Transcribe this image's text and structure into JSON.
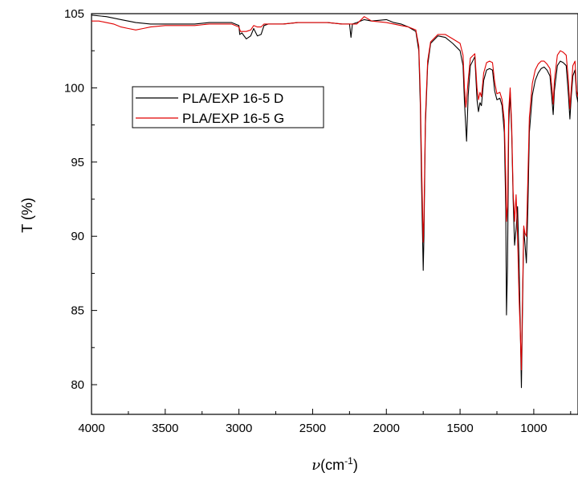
{
  "chart_data": {
    "type": "line",
    "title": "",
    "xlabel": {
      "symbol": "ν",
      "text": "(cm",
      "sup": "-1",
      "close": ")"
    },
    "ylabel": "T (%)",
    "xlim": [
      4000,
      700
    ],
    "ylim": [
      78,
      105
    ],
    "x_reversed": true,
    "x_ticks": [
      4000,
      3500,
      3000,
      2500,
      2000,
      1500,
      1000
    ],
    "y_ticks": [
      80,
      85,
      90,
      95,
      100,
      105
    ],
    "grid": false,
    "legend": {
      "position": "upper-left",
      "entries": [
        "PLA/EXP 16-5 D",
        "PLA/EXP 16-5 G"
      ]
    },
    "colors": {
      "PLA/EXP 16-5 D": "#000000",
      "PLA/EXP 16-5 G": "#e00000"
    },
    "series": [
      {
        "name": "PLA/EXP 16-5 D",
        "color": "#000000",
        "points": [
          [
            4000,
            104.9
          ],
          [
            3900,
            104.8
          ],
          [
            3800,
            104.6
          ],
          [
            3700,
            104.4
          ],
          [
            3600,
            104.3
          ],
          [
            3500,
            104.3
          ],
          [
            3400,
            104.3
          ],
          [
            3300,
            104.3
          ],
          [
            3200,
            104.4
          ],
          [
            3100,
            104.4
          ],
          [
            3050,
            104.4
          ],
          [
            3000,
            104.2
          ],
          [
            2995,
            103.6
          ],
          [
            2980,
            103.7
          ],
          [
            2950,
            103.3
          ],
          [
            2920,
            103.5
          ],
          [
            2900,
            104.0
          ],
          [
            2875,
            103.5
          ],
          [
            2850,
            103.6
          ],
          [
            2830,
            104.2
          ],
          [
            2800,
            104.3
          ],
          [
            2700,
            104.3
          ],
          [
            2600,
            104.4
          ],
          [
            2500,
            104.4
          ],
          [
            2400,
            104.4
          ],
          [
            2300,
            104.3
          ],
          [
            2250,
            104.3
          ],
          [
            2240,
            103.4
          ],
          [
            2230,
            104.3
          ],
          [
            2200,
            104.4
          ],
          [
            2150,
            104.6
          ],
          [
            2100,
            104.5
          ],
          [
            2000,
            104.6
          ],
          [
            1950,
            104.4
          ],
          [
            1900,
            104.3
          ],
          [
            1850,
            104.1
          ],
          [
            1800,
            103.8
          ],
          [
            1780,
            102.5
          ],
          [
            1770,
            99.0
          ],
          [
            1760,
            93.0
          ],
          [
            1750,
            87.7
          ],
          [
            1745,
            90.0
          ],
          [
            1735,
            97.5
          ],
          [
            1720,
            101.5
          ],
          [
            1700,
            103.0
          ],
          [
            1650,
            103.5
          ],
          [
            1600,
            103.4
          ],
          [
            1550,
            103.0
          ],
          [
            1500,
            102.5
          ],
          [
            1480,
            101.5
          ],
          [
            1470,
            99.0
          ],
          [
            1456,
            96.4
          ],
          [
            1445,
            99.5
          ],
          [
            1430,
            101.5
          ],
          [
            1400,
            102.1
          ],
          [
            1385,
            99.2
          ],
          [
            1375,
            98.4
          ],
          [
            1365,
            99.0
          ],
          [
            1355,
            98.8
          ],
          [
            1340,
            100.5
          ],
          [
            1320,
            101.2
          ],
          [
            1300,
            101.3
          ],
          [
            1280,
            101.2
          ],
          [
            1265,
            99.8
          ],
          [
            1250,
            99.2
          ],
          [
            1230,
            99.3
          ],
          [
            1215,
            98.8
          ],
          [
            1200,
            97.0
          ],
          [
            1190,
            92.0
          ],
          [
            1185,
            84.7
          ],
          [
            1178,
            88.0
          ],
          [
            1170,
            97.5
          ],
          [
            1160,
            99.7
          ],
          [
            1150,
            97.0
          ],
          [
            1140,
            92.5
          ],
          [
            1130,
            89.4
          ],
          [
            1120,
            90.5
          ],
          [
            1110,
            92.0
          ],
          [
            1100,
            88.5
          ],
          [
            1090,
            83.0
          ],
          [
            1084,
            79.8
          ],
          [
            1078,
            84.0
          ],
          [
            1068,
            90.5
          ],
          [
            1060,
            89.5
          ],
          [
            1050,
            88.2
          ],
          [
            1040,
            92.0
          ],
          [
            1030,
            97.0
          ],
          [
            1010,
            99.5
          ],
          [
            990,
            100.5
          ],
          [
            970,
            101.0
          ],
          [
            950,
            101.3
          ],
          [
            930,
            101.4
          ],
          [
            910,
            101.2
          ],
          [
            890,
            100.8
          ],
          [
            875,
            99.0
          ],
          [
            868,
            98.2
          ],
          [
            860,
            99.8
          ],
          [
            840,
            101.5
          ],
          [
            820,
            101.8
          ],
          [
            800,
            101.7
          ],
          [
            780,
            101.5
          ],
          [
            765,
            99.5
          ],
          [
            755,
            97.9
          ],
          [
            745,
            99.5
          ],
          [
            735,
            100.8
          ],
          [
            720,
            101.2
          ],
          [
            710,
            99.5
          ],
          [
            700,
            99.0
          ]
        ]
      },
      {
        "name": "PLA/EXP 16-5 G",
        "color": "#e00000",
        "points": [
          [
            4000,
            104.5
          ],
          [
            3950,
            104.5
          ],
          [
            3900,
            104.4
          ],
          [
            3850,
            104.3
          ],
          [
            3800,
            104.1
          ],
          [
            3750,
            104.0
          ],
          [
            3700,
            103.9
          ],
          [
            3650,
            104.0
          ],
          [
            3600,
            104.1
          ],
          [
            3500,
            104.2
          ],
          [
            3400,
            104.2
          ],
          [
            3300,
            104.2
          ],
          [
            3200,
            104.3
          ],
          [
            3100,
            104.3
          ],
          [
            3050,
            104.3
          ],
          [
            3000,
            104.1
          ],
          [
            2990,
            103.8
          ],
          [
            2975,
            103.8
          ],
          [
            2950,
            103.8
          ],
          [
            2920,
            103.9
          ],
          [
            2900,
            104.2
          ],
          [
            2875,
            104.1
          ],
          [
            2850,
            104.1
          ],
          [
            2830,
            104.3
          ],
          [
            2700,
            104.3
          ],
          [
            2600,
            104.4
          ],
          [
            2500,
            104.4
          ],
          [
            2400,
            104.4
          ],
          [
            2300,
            104.3
          ],
          [
            2250,
            104.3
          ],
          [
            2200,
            104.3
          ],
          [
            2150,
            104.8
          ],
          [
            2100,
            104.5
          ],
          [
            2000,
            104.4
          ],
          [
            1950,
            104.3
          ],
          [
            1900,
            104.2
          ],
          [
            1850,
            104.1
          ],
          [
            1800,
            103.9
          ],
          [
            1780,
            102.8
          ],
          [
            1770,
            99.8
          ],
          [
            1760,
            94.5
          ],
          [
            1750,
            89.6
          ],
          [
            1745,
            91.2
          ],
          [
            1735,
            98.0
          ],
          [
            1720,
            101.8
          ],
          [
            1700,
            103.1
          ],
          [
            1650,
            103.6
          ],
          [
            1600,
            103.6
          ],
          [
            1550,
            103.3
          ],
          [
            1500,
            103.0
          ],
          [
            1480,
            102.2
          ],
          [
            1470,
            100.0
          ],
          [
            1460,
            98.7
          ],
          [
            1445,
            100.5
          ],
          [
            1430,
            102.0
          ],
          [
            1400,
            102.3
          ],
          [
            1385,
            100.0
          ],
          [
            1375,
            99.2
          ],
          [
            1365,
            99.7
          ],
          [
            1355,
            99.4
          ],
          [
            1340,
            101.0
          ],
          [
            1320,
            101.7
          ],
          [
            1300,
            101.8
          ],
          [
            1280,
            101.7
          ],
          [
            1265,
            100.4
          ],
          [
            1250,
            99.6
          ],
          [
            1230,
            99.7
          ],
          [
            1215,
            99.2
          ],
          [
            1200,
            97.8
          ],
          [
            1190,
            94.0
          ],
          [
            1185,
            91.0
          ],
          [
            1178,
            92.0
          ],
          [
            1170,
            98.5
          ],
          [
            1160,
            100.0
          ],
          [
            1150,
            97.5
          ],
          [
            1140,
            93.0
          ],
          [
            1130,
            91.0
          ],
          [
            1120,
            92.8
          ],
          [
            1110,
            90.0
          ],
          [
            1100,
            86.0
          ],
          [
            1090,
            83.0
          ],
          [
            1084,
            81.0
          ],
          [
            1078,
            85.0
          ],
          [
            1068,
            90.7
          ],
          [
            1060,
            90.2
          ],
          [
            1050,
            90.0
          ],
          [
            1040,
            94.0
          ],
          [
            1030,
            98.0
          ],
          [
            1010,
            100.3
          ],
          [
            990,
            101.2
          ],
          [
            970,
            101.6
          ],
          [
            950,
            101.8
          ],
          [
            930,
            101.8
          ],
          [
            910,
            101.6
          ],
          [
            890,
            101.3
          ],
          [
            875,
            99.8
          ],
          [
            868,
            98.9
          ],
          [
            860,
            100.5
          ],
          [
            840,
            102.2
          ],
          [
            820,
            102.5
          ],
          [
            800,
            102.4
          ],
          [
            780,
            102.2
          ],
          [
            765,
            100.5
          ],
          [
            755,
            98.6
          ],
          [
            745,
            100.0
          ],
          [
            735,
            101.5
          ],
          [
            720,
            101.8
          ],
          [
            710,
            99.8
          ],
          [
            700,
            99.4
          ]
        ]
      }
    ]
  }
}
